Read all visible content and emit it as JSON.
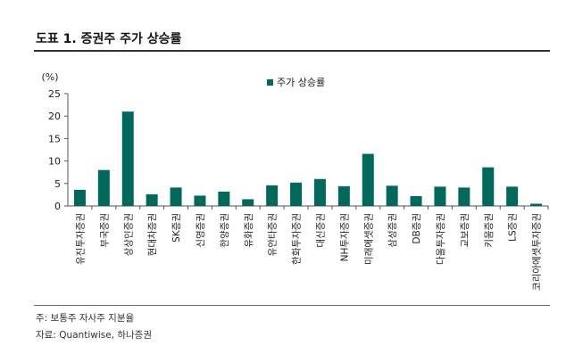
{
  "title": "도표 1. 증권주 주가 상승률",
  "notes": {
    "note1": "주: 보통주 자사주 지분율",
    "source": "자료: Quantiwise, 하나증권"
  },
  "colors": {
    "bar": "#00695c",
    "axis": "#555555"
  },
  "chart_data": {
    "type": "bar",
    "unit_label": "(%)",
    "legend": "주가 상승률",
    "legend_position": "top-center",
    "grid": false,
    "ylim": [
      0,
      25
    ],
    "yticks": [
      0,
      5,
      10,
      15,
      20,
      25
    ],
    "categories": [
      "유진투자증권",
      "부국증권",
      "상상인증권",
      "현대차증권",
      "SK증권",
      "신영증권",
      "한양증권",
      "유화증권",
      "유안타증권",
      "한화투자증권",
      "대신증권",
      "NH투자증권",
      "미래에셋증권",
      "삼성증권",
      "DB증권",
      "다올투자증권",
      "교보증권",
      "키움증권",
      "LS증권",
      "코리아에셋투자증권"
    ],
    "series": [
      {
        "name": "주가 상승률",
        "values": [
          3.6,
          8.0,
          21.0,
          2.6,
          4.1,
          2.3,
          3.2,
          1.5,
          4.6,
          5.2,
          6.0,
          4.4,
          11.6,
          4.5,
          2.2,
          4.3,
          4.1,
          8.6,
          4.3,
          0.5
        ]
      }
    ]
  }
}
